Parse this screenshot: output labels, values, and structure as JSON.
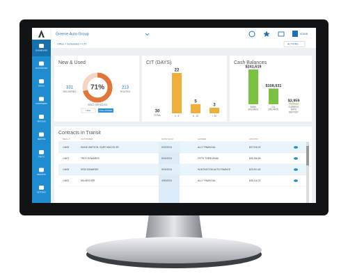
{
  "header": {
    "company": "Greene Auto Group",
    "user": "ADMIN"
  },
  "sidebar": [
    "DASHBOARD",
    "ACCOUNTING",
    "DEALS",
    "CUSTOMERS",
    "VEHICLES",
    "SERVICE",
    "PARTS",
    "REPORTS",
    "SETTINGS"
  ],
  "breadcrumb": "Office > Schedules > CIT",
  "actions": "ACTIONS",
  "new_used": {
    "title": "New & Used",
    "delivered": {
      "value": 331,
      "label": "DELIVERED"
    },
    "routed": {
      "value": 213,
      "label": "ROUTED"
    },
    "percent": 71,
    "percent_label": "71%",
    "caption": "SOLD VEHICLES",
    "buttons": [
      "NEW",
      "PRE-OWNED"
    ]
  },
  "cit": {
    "title": "CIT (DAYS)",
    "total": {
      "value": 30,
      "label": "TOTAL"
    },
    "categories": [
      "0 - 5",
      "6 - 10",
      "> 10"
    ],
    "values": [
      22,
      5,
      3
    ],
    "color": "#f0ae3a"
  },
  "cash": {
    "title": "Cash Balances",
    "categories": [
      "BANK BALANCE",
      "G/L BALANCE",
      "CURRENT DAYS DEPOSIT"
    ],
    "values": [
      241619,
      108931,
      3959
    ],
    "value_labels": [
      "$241,619",
      "$108,931",
      "$3,959"
    ],
    "color": "#7cc242"
  },
  "contracts": {
    "title": "Contracts In Transit",
    "columns": [
      "DEAL #",
      "CUSTOMER",
      "DATE SOLD",
      "LENDER",
      "AMOUNT"
    ],
    "rows": [
      [
        "14406",
        "DIANE WATSON, GARY MACOS SR.",
        "5/22/2016",
        "ALLY FINANCIAL",
        "$27,916.22"
      ],
      [
        "14407",
        "TROY EDWARDS",
        "5/24/2016",
        "FIFTH THIRD BANK",
        "$28,356.83"
      ],
      [
        "14408",
        "KRIS EDWARDS",
        "5/24/2016",
        "HUNTINGTON AUTO FINANCE",
        "$23,901.62"
      ],
      [
        "14402",
        "IAN ARCHER",
        "4/30/2016",
        "ALLY FINANCIAL",
        "$28,316.22"
      ]
    ]
  }
}
